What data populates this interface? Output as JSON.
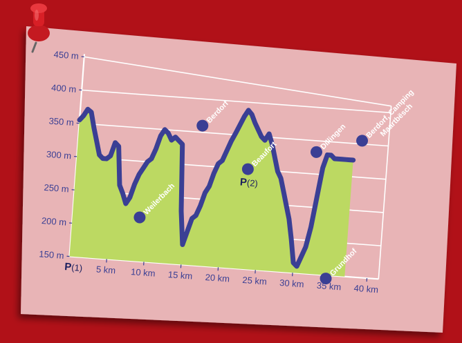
{
  "colors": {
    "background": "#b11118",
    "card": "#e8b4b6",
    "area_fill": "#bcd962",
    "line": "#3a3f94",
    "grid": "#ffffff",
    "pin": "#d81f26"
  },
  "icons": {
    "pin": "pushpin-icon",
    "marker": "location-dot-icon"
  },
  "chart_data": {
    "type": "area",
    "title": "",
    "xlabel": "",
    "ylabel": "",
    "xlim": [
      0,
      41
    ],
    "ylim": [
      150,
      450
    ],
    "grid": true,
    "y_ticks": [
      "150 m",
      "200 m",
      "250 m",
      "300 m",
      "350 m",
      "400 m",
      "450 m"
    ],
    "x_ticks": [
      "5 km",
      "10 km",
      "15 km",
      "20 km",
      "25 km",
      "30 km",
      "35 km",
      "40 km"
    ],
    "x_tick_values": [
      5,
      10,
      15,
      20,
      25,
      30,
      35,
      40
    ],
    "start_label": "P",
    "start_sub": "(1)",
    "series": [
      {
        "x": [
          0,
          0.5,
          1,
          1.5,
          2,
          2.5,
          3,
          3.5,
          4,
          4.5,
          5,
          5.5,
          6,
          6.5,
          7,
          7.5,
          8,
          8.5,
          9,
          9.5,
          10,
          10.5,
          11,
          11.5,
          12,
          12.5,
          13,
          13.5,
          14,
          14.5,
          15,
          15.5,
          16,
          16.5,
          17,
          17.5,
          18,
          18.5,
          19,
          19.5,
          20,
          20.5,
          21,
          21.5,
          22,
          22.5,
          23,
          23.5,
          24,
          24.5,
          25,
          25.5,
          26,
          26.5,
          27,
          27.5,
          28,
          28.5,
          29,
          29.5,
          30,
          30.5,
          31,
          31.5,
          32,
          32.5,
          33,
          33.5,
          34,
          34.5,
          35,
          35.5,
          36,
          36.5,
          37
        ],
        "y": [
          355,
          362,
          372,
          368,
          345,
          325,
          305,
          300,
          300,
          305,
          325,
          320,
          262,
          250,
          235,
          245,
          265,
          280,
          290,
          300,
          305,
          320,
          340,
          350,
          345,
          335,
          340,
          335,
          330,
          230,
          180,
          200,
          220,
          225,
          240,
          260,
          270,
          290,
          305,
          310,
          325,
          340,
          352,
          365,
          378,
          388,
          382,
          370,
          360,
          350,
          345,
          355,
          340,
          320,
          300,
          290,
          270,
          250,
          230,
          200,
          165,
          160,
          175,
          190,
          220,
          265,
          310,
          330,
          330,
          325,
          325,
          325,
          325,
          325,
          325
        ]
      }
    ],
    "places": [
      {
        "name": "Weilerbach",
        "x": 9,
        "y": 216
      },
      {
        "name": "Berdorf",
        "x": 16.5,
        "y": 360
      },
      {
        "name": "Beaufort",
        "x": 23,
        "y": 300
      },
      {
        "name": "Dillingen",
        "x": 32,
        "y": 333
      },
      {
        "name": "Berdorf, Camping",
        "name2": "Maartbësch",
        "x": 38,
        "y": 355
      },
      {
        "name": "Grundhof",
        "x": 34.5,
        "y": 145
      }
    ],
    "parking2": {
      "label": "P",
      "sub": "(2)",
      "x": 23,
      "y": 275
    }
  }
}
